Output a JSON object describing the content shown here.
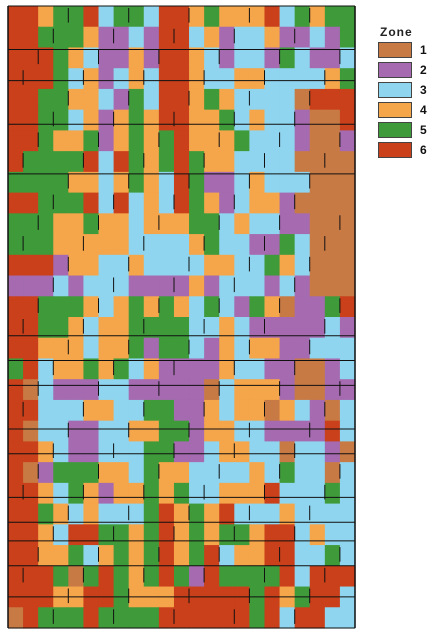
{
  "legend": {
    "title": "Zone",
    "zones": [
      {
        "label": "1",
        "color": "#c87a45"
      },
      {
        "label": "2",
        "color": "#a56ab0"
      },
      {
        "label": "3",
        "color": "#8fd5ef"
      },
      {
        "label": "4",
        "color": "#f5a54a"
      },
      {
        "label": "5",
        "color": "#3f9a3a"
      },
      {
        "label": "6",
        "color": "#c9401a"
      }
    ]
  },
  "map": {
    "outline_color": "#111111",
    "zone_codes": [
      "66455635536645444635455",
      "66555422326634233422325",
      "66654322426643233253223",
      "66653423436643344333345",
      "66554432536645433331666",
      "66553424546644534332116",
      "66544524545644453332112",
      "65555636545654433331111",
      "55554434543652234333111",
      "66555636343654234421111",
      "55544544344455343322111",
      "55544444333345332253111",
      "66624433433334433543111",
      "22232333222242333232111",
      "66555434545435325412256",
      "66554344555533432222232",
      "66444344525532434422333",
      "56344545342222433221123",
      "61322233222221344421122",
      "66333443355224344143213",
      "61332233445524433222263",
      "66432233355223443313321",
      "61255544354433334353313",
      "66435424454533444633353",
      "66543433356454633343333",
      "66436655456454554663433",
      "66445345456456344663353",
      "66651565456526555563666",
      "66644665444666665645663",
      "16555655556666665636633"
    ]
  }
}
